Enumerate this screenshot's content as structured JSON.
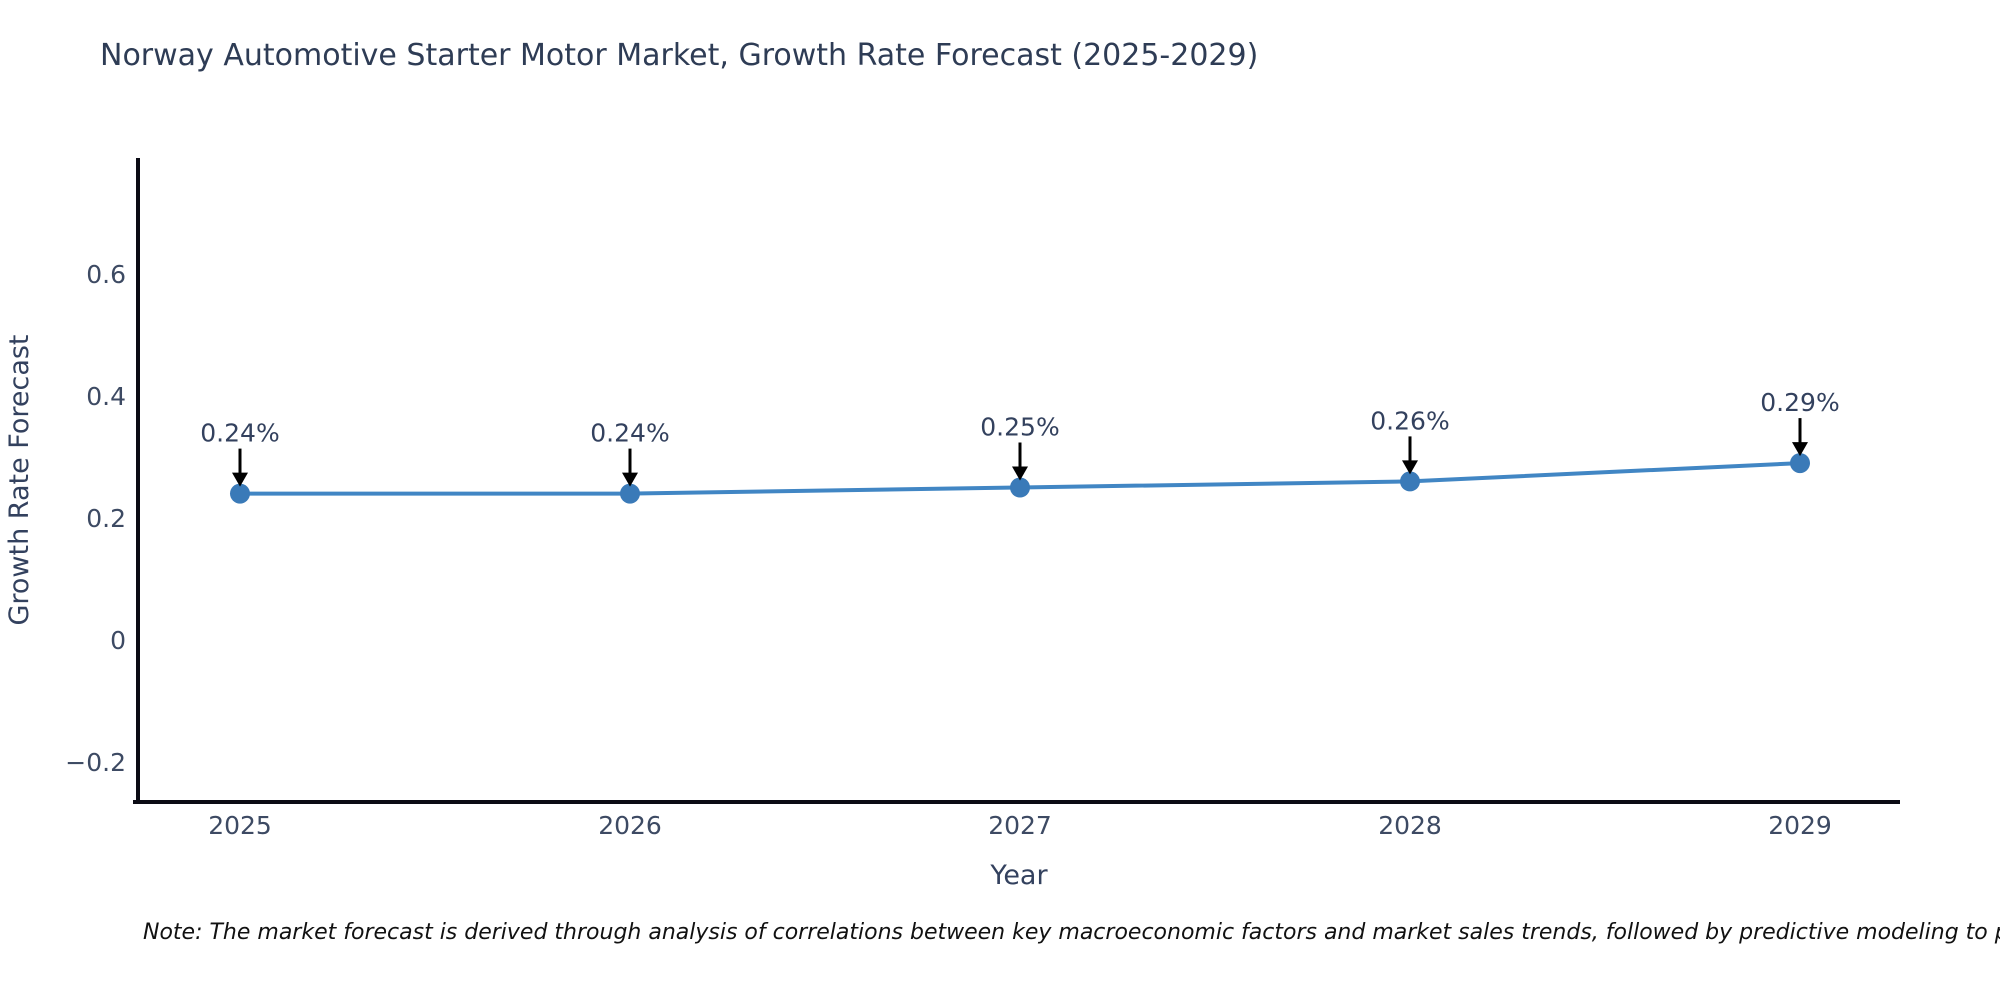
{
  "chart_data": {
    "type": "line",
    "title": "Norway Automotive Starter Motor Market, Growth Rate Forecast (2025-2029)",
    "xlabel": "Year",
    "ylabel": "Growth Rate Forecast",
    "categories": [
      2025,
      2026,
      2027,
      2028,
      2029
    ],
    "values": [
      0.24,
      0.24,
      0.25,
      0.26,
      0.29
    ],
    "point_labels": [
      "0.24%",
      "0.24%",
      "0.25%",
      "0.26%",
      "0.29%"
    ],
    "yticks": [
      -0.2,
      0,
      0.2,
      0.4,
      0.6
    ],
    "ytick_labels": [
      "−0.2",
      "0",
      "0.2",
      "0.4",
      "0.6"
    ],
    "ylim": [
      -0.27,
      0.79
    ],
    "grid": false,
    "legend_position": "none",
    "annotation_style": "down-arrow-to-point",
    "colors": {
      "line": "#4186c4",
      "marker": "#3a7ab8",
      "axis": "#0b0b14",
      "tick_text": "#3d4a63",
      "annotation_text": "#33415e",
      "arrow": "#000000",
      "title_text": "#2e3c55"
    }
  },
  "note": {
    "text": "Note: The market forecast is derived through analysis of correlations between key macroeconomic factors and market sales trends, followed by predictive modeling to project future sa"
  }
}
